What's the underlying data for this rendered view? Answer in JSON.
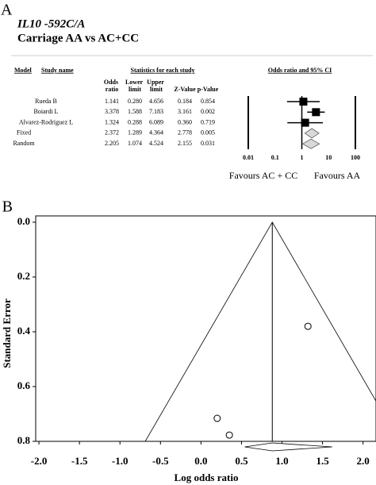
{
  "chart_data": [
    {
      "type": "forest",
      "panel": "A",
      "title": "IL10 -592C/A",
      "subtitle": "Carriage AA vs AC+CC",
      "headers": {
        "model": "Model",
        "study": "Study name",
        "statistics": "Statistics for each study",
        "plot": "Odds ratio and 95% CI"
      },
      "columns": [
        "Odds ratio",
        "Lower limit",
        "Upper limit",
        "Z-Value",
        "p-Value"
      ],
      "rows": [
        {
          "name": "Rueda B",
          "values": [
            1.141,
            0.28,
            4.656,
            0.184,
            0.854
          ],
          "value_labels": [
            "1.141",
            "0.280",
            "4.656",
            "0.184",
            "0.854"
          ]
        },
        {
          "name": "Boiardi L",
          "values": [
            3.378,
            1.588,
            7.183,
            3.161,
            0.002
          ],
          "value_labels": [
            "3.378",
            "1.588",
            "7.183",
            "3.161",
            "0.002"
          ]
        },
        {
          "name": "Alvarez-Rodriguez L",
          "values": [
            1.324,
            0.288,
            6.089,
            0.36,
            0.719
          ],
          "value_labels": [
            "1.324",
            "0.288",
            "6.089",
            "0.360",
            "0.719"
          ]
        },
        {
          "model": "Fixed",
          "values": [
            2.372,
            1.289,
            4.364,
            2.778,
            0.005
          ],
          "value_labels": [
            "2.372",
            "1.289",
            "4.364",
            "2.778",
            "0.005"
          ]
        },
        {
          "model": "Random",
          "values": [
            2.205,
            1.074,
            4.524,
            2.155,
            0.031
          ],
          "value_labels": [
            "2.205",
            "1.074",
            "4.524",
            "2.155",
            "0.031"
          ]
        }
      ],
      "xscale": "log",
      "xlim": [
        0.01,
        100
      ],
      "xticks": [
        0.01,
        0.1,
        1,
        10,
        100
      ],
      "xlabels": [
        "Favours AC + CC",
        "Favours AA"
      ],
      "color": "#000000",
      "diamond_color": "#d9d9d9"
    },
    {
      "type": "scatter",
      "panel": "B",
      "xlabel": "Log odds ratio",
      "ylabel": "Standard Error",
      "x": [
        0.2,
        0.35,
        1.32
      ],
      "values": [
        0.716,
        0.777,
        0.38
      ],
      "pooled": {
        "value": 0.88,
        "ci": [
          0.54,
          1.62
        ]
      },
      "xlim": [
        -2.04,
        2.16
      ],
      "ylim": [
        -0.023,
        0.8
      ],
      "y_inverted": true,
      "xticks": [
        {
          "value": -2,
          "label": "-2.0"
        },
        {
          "value": -1.5,
          "label": "-1.5"
        },
        {
          "value": -1,
          "label": "-1.0"
        },
        {
          "value": -0.5,
          "label": "-0.5"
        },
        {
          "value": 0,
          "label": "0.0"
        },
        {
          "value": 0.5,
          "label": "0.5"
        },
        {
          "value": 1,
          "label": "1.0"
        },
        {
          "value": 1.5,
          "label": "1.5"
        },
        {
          "value": 2,
          "label": "2.0"
        }
      ],
      "yticks": [
        {
          "value": 0,
          "label": "0.0"
        },
        {
          "value": 0.2,
          "label": "0.2"
        },
        {
          "value": 0.4,
          "label": "0.4"
        },
        {
          "value": 0.6,
          "label": "0.6"
        },
        {
          "value": 0.8,
          "label": "0.8"
        }
      ],
      "color": "#000000"
    }
  ]
}
